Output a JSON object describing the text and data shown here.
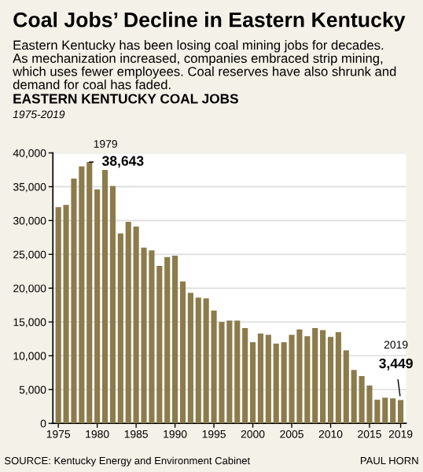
{
  "chart_data": {
    "type": "bar",
    "title": "Coal Jobs’ Decline in Eastern Kentucky",
    "subtitle": "Eastern Kentucky has been losing coal mining jobs for decades.\nAs mechanization increased, companies embraced strip mining,\nwhich uses fewer employees. Coal reserves have also shrunk and\ndemand for coal has faded.",
    "categories": [
      "1975",
      null,
      null,
      null,
      null,
      "1980",
      null,
      null,
      null,
      null,
      "1985",
      null,
      null,
      null,
      null,
      "1990",
      null,
      null,
      null,
      null,
      "1995",
      null,
      null,
      null,
      null,
      "2000",
      null,
      null,
      null,
      null,
      "2005",
      null,
      null,
      null,
      null,
      "2010",
      null,
      null,
      null,
      null,
      "2015",
      null,
      null,
      null,
      "2019"
    ],
    "values": [
      32000,
      32300,
      36200,
      38000,
      38643,
      34600,
      37500,
      35100,
      28100,
      29800,
      29100,
      26000,
      25600,
      23300,
      24600,
      24800,
      21000,
      19300,
      18600,
      18500,
      16700,
      15000,
      15200,
      15200,
      14100,
      12000,
      13300,
      13100,
      11800,
      12000,
      13100,
      13900,
      12900,
      14100,
      13800,
      12800,
      13500,
      10800,
      7900,
      7000,
      5600,
      3500,
      3800,
      3700,
      3449
    ],
    "color": "#8c7b4b",
    "value_labels": [
      null,
      null,
      null,
      null,
      "38,643",
      null,
      null,
      null,
      null,
      null,
      null,
      null,
      null,
      null,
      null,
      null,
      null,
      null,
      null,
      null,
      null,
      null,
      null,
      null,
      null,
      null,
      null,
      null,
      null,
      null,
      null,
      null,
      null,
      null,
      null,
      null,
      null,
      null,
      null,
      null,
      null,
      null,
      null,
      null,
      "3,449"
    ],
    "ylim": [
      0,
      40000
    ],
    "yticks": [
      {
        "value": 0,
        "label": "0"
      },
      {
        "value": 5000,
        "label": "5,000"
      },
      {
        "value": 10000,
        "label": "10,000"
      },
      {
        "value": 15000,
        "label": "15,000"
      },
      {
        "value": 20000,
        "label": "20,000"
      },
      {
        "value": 25000,
        "label": "25,000"
      },
      {
        "value": 30000,
        "label": "30,000"
      },
      {
        "value": 35000,
        "label": "35,000"
      },
      {
        "value": 40000,
        "label": "40,000"
      }
    ],
    "grid": "y",
    "annotations": [
      "EASTERN KENTUCKY COAL JOBS",
      "1975-2019",
      "1979",
      "2019",
      "SOURCE: Kentucky Energy and Environment Cabinet",
      "PAUL HORN"
    ]
  }
}
